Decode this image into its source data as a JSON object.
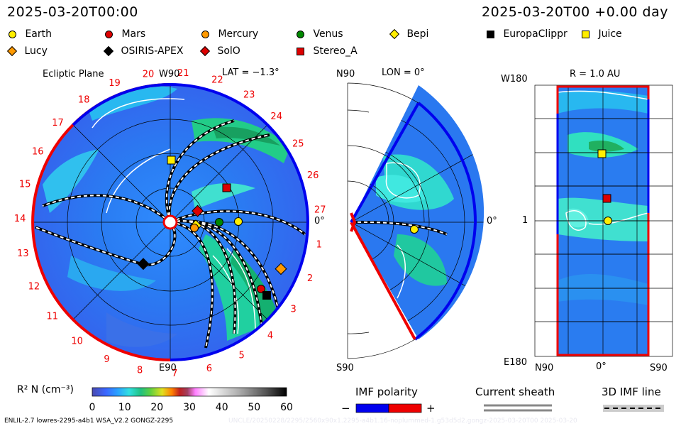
{
  "header": {
    "timestamp_left": "2025-03-20T00:00",
    "timestamp_right": "2025-03-20T00 +0.00 day"
  },
  "legend": [
    {
      "name": "Earth",
      "shape": "circle",
      "color": "#ffee00"
    },
    {
      "name": "Mars",
      "shape": "circle",
      "color": "#dd0000"
    },
    {
      "name": "Mercury",
      "shape": "circle",
      "color": "#ff9900"
    },
    {
      "name": "Venus",
      "shape": "circle",
      "color": "#008800"
    },
    {
      "name": "Bepi",
      "shape": "diamond",
      "color": "#ffee00"
    },
    {
      "name": "EuropaClippr",
      "shape": "square",
      "color": "#000000"
    },
    {
      "name": "Juice",
      "shape": "square",
      "color": "#ffee00"
    },
    {
      "name": "Lucy",
      "shape": "diamond",
      "color": "#ff9900"
    },
    {
      "name": "OSIRIS-APEX",
      "shape": "diamond",
      "color": "#000000"
    },
    {
      "name": "SolO",
      "shape": "diamond",
      "color": "#dd0000"
    },
    {
      "name": "Stereo_A",
      "shape": "square",
      "color": "#dd0000"
    }
  ],
  "panel1": {
    "title": "Ecliptic Plane",
    "top_label": "W90",
    "lat_label": "LAT = −1.3°",
    "right_label": "0°",
    "bottom_label": "E90",
    "carrington_ticks": [
      "1",
      "2",
      "3",
      "4",
      "5",
      "6",
      "7",
      "8",
      "9",
      "10",
      "11",
      "12",
      "13",
      "14",
      "15",
      "16",
      "17",
      "18",
      "19",
      "20",
      "21",
      "22",
      "23",
      "24",
      "25",
      "26",
      "27"
    ]
  },
  "panel2": {
    "top_label": "N90",
    "lon_label": "LON = 0°",
    "right_label": "0°",
    "bottom_label": "S90"
  },
  "panel3": {
    "top_left": "W180",
    "r_label": "R = 1.0 AU",
    "mid_left": "1",
    "bottom_left": "E180",
    "x_left": "N90",
    "x_mid": "0°",
    "x_right": "S90"
  },
  "colorbar": {
    "label": "R² N (cm⁻³)",
    "ticks": [
      "0",
      "10",
      "20",
      "30",
      "40",
      "50",
      "60"
    ],
    "min": 0,
    "max": 60
  },
  "imf": {
    "title": "IMF polarity",
    "minus": "−",
    "plus": "+",
    "neg_color": "#0000ee",
    "pos_color": "#ee0000"
  },
  "sheath": {
    "title": "Current sheath"
  },
  "imf3d": {
    "title": "3D IMF line"
  },
  "footer": {
    "left": "ENLIL-2.7 lowres-2295-a4b1 WSA_V2.2 GONGZ-2295",
    "right": "UNCLE/20250228/2295/2560x90x1.2295-a4b1.16-noplummed-1.g53d5d2.gongz-2025-03-20T00   2025-03-20"
  }
}
